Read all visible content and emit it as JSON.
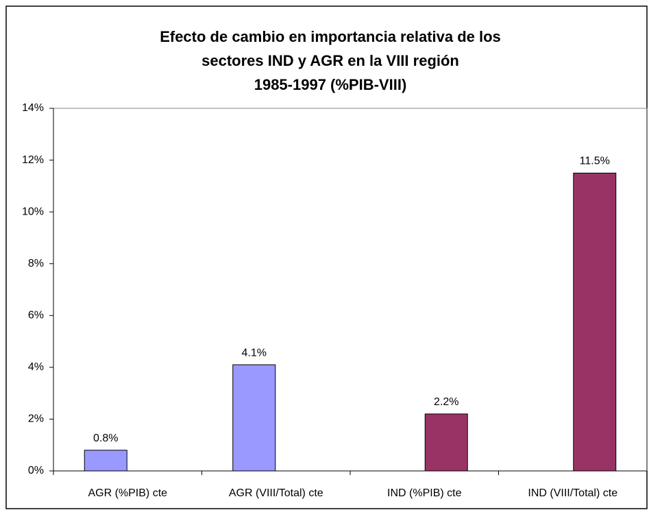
{
  "chart_data": {
    "type": "bar",
    "title": [
      "Efecto de cambio en importancia relativa de los",
      "sectores IND y AGR en la VIII región",
      "1985-1997 (%PIB-VIII)"
    ],
    "categories": [
      "AGR (%PIB) cte",
      "AGR (VIII/Total) cte",
      "IND (%PIB) cte",
      "IND (VIII/Total) cte"
    ],
    "values": [
      0.8,
      4.1,
      2.2,
      11.5
    ],
    "value_labels": [
      "0.8%",
      "4.1%",
      "2.2%",
      "11.5%"
    ],
    "colors": [
      "#9999ff",
      "#9999ff",
      "#993366",
      "#993366"
    ],
    "ylim": [
      0,
      14
    ],
    "yticks": [
      {
        "value": 0,
        "label": "0%"
      },
      {
        "value": 2,
        "label": "2%"
      },
      {
        "value": 4,
        "label": "4%"
      },
      {
        "value": 6,
        "label": "6%"
      },
      {
        "value": 8,
        "label": "8%"
      },
      {
        "value": 10,
        "label": "10%"
      },
      {
        "value": 12,
        "label": "12%"
      },
      {
        "value": 14,
        "label": "14%"
      }
    ],
    "grid": false
  }
}
